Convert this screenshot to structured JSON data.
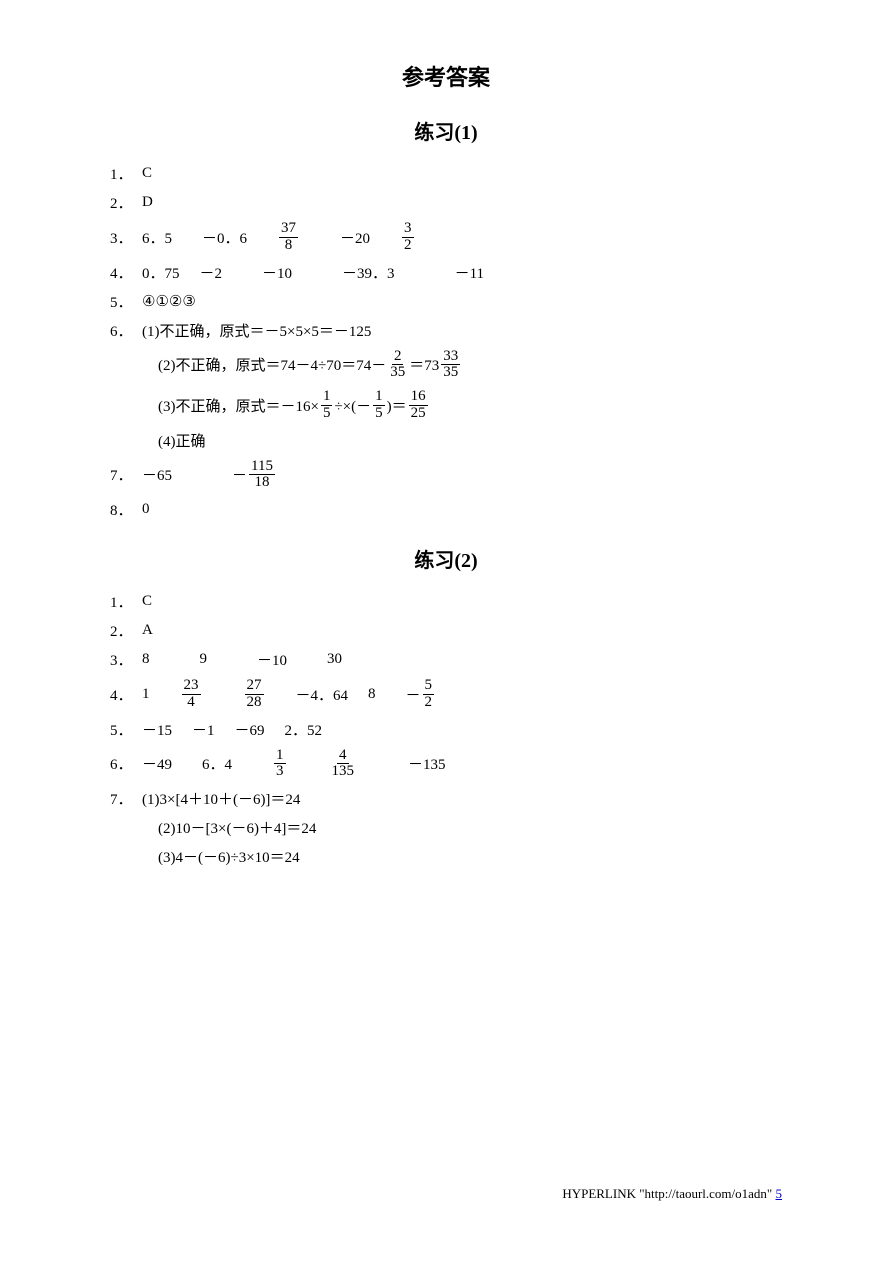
{
  "main_title": "参考答案",
  "sections": [
    {
      "title": "练习(1)",
      "items": {
        "q1": {
          "label": "1．",
          "ans": "C"
        },
        "q2": {
          "label": "2．",
          "ans": "D"
        },
        "q3": {
          "label": "3．",
          "parts": [
            "6．5",
            "－0．6"
          ],
          "f1n": "37",
          "f1d": "8",
          "p2": "－20",
          "f2n": "3",
          "f2d": "2"
        },
        "q4": {
          "label": "4．",
          "parts": [
            "0．75",
            "－2",
            "－10",
            "－39．3",
            "－11"
          ]
        },
        "q5": {
          "label": "5．",
          "ans": "④①②③"
        },
        "q6": {
          "label": "6．",
          "l1": "(1)不正确，原式＝－5×5×5＝－125",
          "l2a": "(2)不正确，原式＝74－4÷70＝74－",
          "l2fn1": "2",
          "l2fd1": "35",
          "l2b": "＝73",
          "l2fn2": "33",
          "l2fd2": "35",
          "l3a": "(3)不正确，原式＝－16×",
          "l3fn1": "1",
          "l3fd1": "5",
          "l3b": "÷×(－",
          "l3fn2": "1",
          "l3fd2": "5",
          "l3c": ")＝",
          "l3fn3": "16",
          "l3fd3": "25",
          "l4": "(4)正确"
        },
        "q7": {
          "label": "7．",
          "a": "－65",
          "b": "－",
          "fn": "115",
          "fd": "18"
        },
        "q8": {
          "label": "8．",
          "ans": "0"
        }
      }
    },
    {
      "title": "练习(2)",
      "items": {
        "q1": {
          "label": "1．",
          "ans": "C"
        },
        "q2": {
          "label": "2．",
          "ans": "A"
        },
        "q3": {
          "label": "3．",
          "parts": [
            "8",
            "9",
            "－10",
            "30"
          ]
        },
        "q4": {
          "label": "4．",
          "p1": "1",
          "f1n": "23",
          "f1d": "4",
          "f2n": "27",
          "f2d": "28",
          "p2": "－4．64",
          "p3": "8",
          "p4": "－",
          "f3n": "5",
          "f3d": "2"
        },
        "q5": {
          "label": "5．",
          "parts": [
            "－15",
            "－1",
            "－69",
            "2．52"
          ]
        },
        "q6": {
          "label": "6．",
          "p1": "－49",
          "p2": "6．4",
          "f1n": "1",
          "f1d": "3",
          "f2n": "4",
          "f2d": "135",
          "p3": "－135"
        },
        "q7": {
          "label": "7．",
          "l1": "(1)3×[4＋10＋(－6)]＝24",
          "l2": "(2)10－[3×(－6)＋4]＝24",
          "l3": "(3)4－(－6)÷3×10＝24"
        }
      }
    }
  ],
  "hyperlink": {
    "prefix": "HYPERLINK \"http://taourl.com/o1adn\" ",
    "text": "5"
  }
}
